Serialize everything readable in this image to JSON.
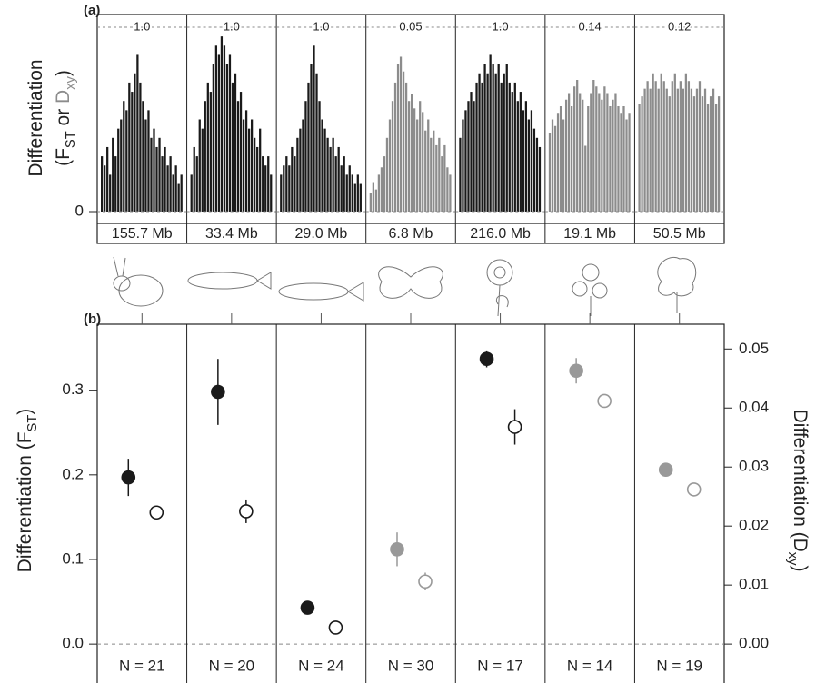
{
  "chart_data": [
    {
      "type": "bar",
      "label": "(a)",
      "y_label": [
        [
          {
            "text": "Differentiation"
          }
        ],
        [
          {
            "text": "(F"
          },
          {
            "text": "ST",
            "sub": true
          },
          {
            "text": " or "
          },
          {
            "text": "D",
            "color": "#8c8c8c"
          },
          {
            "text": "xy",
            "sub": true,
            "color": "#8c8c8c"
          },
          {
            "text": ")"
          }
        ]
      ],
      "yticks": [
        0
      ],
      "panels": [
        {
          "top_tick": {
            "value": 1,
            "label": "1.0"
          },
          "ylim": [
            0,
            1
          ],
          "size": "155.7 Mb",
          "color": "#1a1a1a",
          "values": [
            0.3,
            0.25,
            0.35,
            0.2,
            0.4,
            0.3,
            0.45,
            0.5,
            0.6,
            0.55,
            0.7,
            0.65,
            0.75,
            0.85,
            0.7,
            0.6,
            0.5,
            0.55,
            0.4,
            0.45,
            0.35,
            0.4,
            0.3,
            0.35,
            0.25,
            0.3,
            0.2,
            0.25,
            0.15,
            0.2
          ]
        },
        {
          "top_tick": {
            "value": 1,
            "label": "1.0"
          },
          "ylim": [
            0,
            1
          ],
          "size": "33.4 Mb",
          "color": "#1a1a1a",
          "values": [
            0.2,
            0.35,
            0.3,
            0.5,
            0.45,
            0.6,
            0.7,
            0.65,
            0.8,
            0.9,
            0.85,
            0.95,
            0.9,
            0.8,
            0.85,
            0.7,
            0.75,
            0.6,
            0.65,
            0.5,
            0.55,
            0.45,
            0.5,
            0.4,
            0.35,
            0.45,
            0.3,
            0.25,
            0.3,
            0.2
          ]
        },
        {
          "top_tick": {
            "value": 1,
            "label": "1.0"
          },
          "ylim": [
            0,
            1
          ],
          "size": "29.0 Mb",
          "color": "#1a1a1a",
          "values": [
            0.2,
            0.25,
            0.3,
            0.25,
            0.35,
            0.3,
            0.4,
            0.45,
            0.5,
            0.6,
            0.7,
            0.8,
            0.9,
            0.75,
            0.6,
            0.5,
            0.45,
            0.4,
            0.35,
            0.4,
            0.3,
            0.35,
            0.25,
            0.3,
            0.2,
            0.25,
            0.2,
            0.15,
            0.2,
            0.15
          ]
        },
        {
          "top_tick": 0.05,
          "ylim": [
            0,
            0.05
          ],
          "size": "6.8 Mb",
          "color": "#8c8c8c",
          "values": [
            0.005,
            0.008,
            0.006,
            0.01,
            0.012,
            0.015,
            0.02,
            0.025,
            0.03,
            0.035,
            0.04,
            0.042,
            0.038,
            0.035,
            0.03,
            0.032,
            0.028,
            0.025,
            0.03,
            0.027,
            0.022,
            0.025,
            0.02,
            0.022,
            0.018,
            0.02,
            0.015,
            0.018,
            0.012,
            0.01
          ]
        },
        {
          "top_tick": {
            "value": 1,
            "label": "1.0"
          },
          "ylim": [
            0,
            1
          ],
          "size": "216.0 Mb",
          "color": "#1a1a1a",
          "values": [
            0.4,
            0.5,
            0.55,
            0.6,
            0.65,
            0.6,
            0.7,
            0.75,
            0.7,
            0.8,
            0.75,
            0.85,
            0.8,
            0.75,
            0.8,
            0.7,
            0.75,
            0.8,
            0.7,
            0.65,
            0.7,
            0.6,
            0.65,
            0.55,
            0.6,
            0.5,
            0.55,
            0.45,
            0.4,
            0.35
          ]
        },
        {
          "top_tick": 0.14,
          "ylim": [
            0,
            0.14
          ],
          "size": "19.1 Mb",
          "color": "#8c8c8c",
          "values": [
            0.06,
            0.07,
            0.065,
            0.075,
            0.08,
            0.07,
            0.085,
            0.09,
            0.08,
            0.095,
            0.1,
            0.09,
            0.085,
            0.05,
            0.08,
            0.09,
            0.1,
            0.095,
            0.09,
            0.085,
            0.095,
            0.09,
            0.08,
            0.085,
            0.09,
            0.08,
            0.075,
            0.08,
            0.07,
            0.075
          ]
        },
        {
          "top_tick": 0.12,
          "ylim": [
            0,
            0.12
          ],
          "size": "50.5 Mb",
          "color": "#8c8c8c",
          "values": [
            0.07,
            0.075,
            0.08,
            0.085,
            0.08,
            0.09,
            0.085,
            0.08,
            0.09,
            0.085,
            0.08,
            0.075,
            0.085,
            0.09,
            0.08,
            0.085,
            0.08,
            0.09,
            0.085,
            0.08,
            0.075,
            0.08,
            0.085,
            0.075,
            0.08,
            0.07,
            0.075,
            0.08,
            0.07,
            0.075
          ]
        }
      ]
    },
    {
      "type": "scatter",
      "label": "(b)",
      "y_label": [
        {
          "text": "Differentiation (F"
        },
        {
          "text": "ST",
          "sub": true
        },
        {
          "text": ")"
        }
      ],
      "y2_label": [
        {
          "text": "Differentiation (D"
        },
        {
          "text": "xy",
          "sub": true
        },
        {
          "text": ")"
        }
      ],
      "y2_label_color": "#8c8c8c",
      "categories": [
        "N = 21",
        "N = 20",
        "N = 24",
        "N = 30",
        "N = 17",
        "N = 14",
        "N = 19"
      ],
      "ylim": [
        -0.046,
        0.378
      ],
      "yticks": [
        {
          "value": 0,
          "label": "0.0"
        },
        0.1,
        0.2,
        0.3
      ],
      "y2lim": [
        -0.0066,
        0.0542
      ],
      "y2ticks": [
        {
          "value": 0,
          "label": "0.00"
        },
        0.01,
        0.02,
        0.03,
        0.04,
        0.05
      ],
      "series": [
        {
          "marker": "filled",
          "values": [
            0.197,
            0.298,
            0.043,
            0.112,
            0.337,
            0.323,
            0.206
          ],
          "errors": [
            0.022,
            0.039,
            0.003,
            0.02,
            0.01,
            0.015,
            0.006
          ],
          "colors": [
            "#1a1a1a",
            "#1a1a1a",
            "#1a1a1a",
            "#999999",
            "#1a1a1a",
            "#999999",
            "#999999"
          ]
        },
        {
          "marker": "open",
          "axis": "y2",
          "values": [
            0.0223,
            0.0225,
            0.0028,
            0.0106,
            0.0368,
            0.0412,
            0.0262
          ],
          "errors": [
            0.001,
            0.002,
            0.0003,
            0.0015,
            0.003,
            0.001,
            0.0003
          ],
          "colors": [
            "#1a1a1a",
            "#1a1a1a",
            "#1a1a1a",
            "#999999",
            "#1a1a1a",
            "#999999",
            "#999999"
          ]
        }
      ]
    }
  ]
}
